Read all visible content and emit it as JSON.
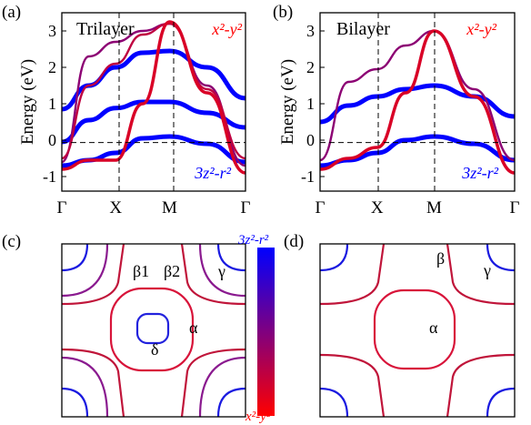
{
  "figure": {
    "colors": {
      "orbital_x2y2": "#ff0000",
      "orbital_3z2r2": "#0000ff",
      "axis": "#000000",
      "dash": "#000000"
    }
  },
  "chart_data": [
    {
      "panel": "(a)",
      "type": "line",
      "title": "Trilayer",
      "ylabel": "Energy (eV)",
      "ylim": [
        -1.4,
        3.5
      ],
      "yticks": [
        -1,
        0,
        1,
        2,
        3
      ],
      "xticks": [
        "Γ",
        "X",
        "M",
        "Γ"
      ],
      "x_positions": [
        0,
        1,
        2,
        3.41
      ],
      "hlines": [
        0
      ],
      "vlines": [
        1,
        2
      ],
      "annotations": {
        "top_right": "x²-y²",
        "bottom_right": "3z²-r²"
      },
      "series": [
        {
          "color_weight": 0.0,
          "x": [
            0,
            0.5,
            1,
            1.5,
            2,
            2.7,
            3.41
          ],
          "values": [
            0.85,
            1.5,
            2.0,
            2.4,
            2.45,
            2.0,
            1.15
          ]
        },
        {
          "color_weight": 0.0,
          "x": [
            0,
            0.5,
            1,
            1.5,
            2,
            2.7,
            3.41
          ],
          "values": [
            -0.05,
            0.55,
            0.88,
            1.05,
            1.05,
            0.75,
            0.35
          ]
        },
        {
          "color_weight": 0.0,
          "x": [
            0,
            0.5,
            1,
            1.5,
            2,
            2.7,
            3.41
          ],
          "values": [
            -0.7,
            -0.55,
            -0.35,
            0.05,
            0.1,
            -0.1,
            -0.6
          ]
        },
        {
          "color_weight": 0.55,
          "x": [
            0,
            0.5,
            1,
            1.5,
            2,
            2.7,
            3.41
          ],
          "values": [
            -0.6,
            2.3,
            2.7,
            3.0,
            3.2,
            1.5,
            -0.7
          ]
        },
        {
          "color_weight": 0.75,
          "x": [
            0,
            0.5,
            1,
            1.5,
            2,
            2.7,
            3.41
          ],
          "values": [
            -0.5,
            1.5,
            2.1,
            2.9,
            3.2,
            1.4,
            -0.5
          ]
        },
        {
          "color_weight": 0.85,
          "x": [
            0,
            0.5,
            1,
            1.5,
            2,
            2.7,
            3.41
          ],
          "values": [
            -0.8,
            -0.55,
            -0.55,
            1.0,
            3.25,
            1.3,
            -0.9
          ]
        }
      ]
    },
    {
      "panel": "(b)",
      "type": "line",
      "title": "Bilayer",
      "ylabel": "Energy (eV)",
      "ylim": [
        -1.4,
        3.5
      ],
      "yticks": [
        -1,
        0,
        1,
        2,
        3
      ],
      "xticks": [
        "Γ",
        "X",
        "M",
        "Γ"
      ],
      "x_positions": [
        0,
        1,
        2,
        3.41
      ],
      "hlines": [
        0
      ],
      "vlines": [
        1,
        2
      ],
      "annotations": {
        "top_right": "x²-y²",
        "bottom_right": "3z²-r²"
      },
      "series": [
        {
          "color_weight": 0.0,
          "x": [
            0,
            0.5,
            1,
            1.5,
            2,
            2.7,
            3.41
          ],
          "values": [
            0.5,
            0.95,
            1.2,
            1.4,
            1.5,
            1.2,
            0.65
          ]
        },
        {
          "color_weight": 0.0,
          "x": [
            0,
            0.5,
            1,
            1.5,
            2,
            2.7,
            3.41
          ],
          "values": [
            -0.7,
            -0.55,
            -0.35,
            0.0,
            0.1,
            -0.1,
            -0.55
          ]
        },
        {
          "color_weight": 0.55,
          "x": [
            0,
            0.5,
            1,
            1.5,
            2,
            2.7,
            3.41
          ],
          "values": [
            -0.55,
            1.6,
            1.95,
            2.6,
            3.0,
            1.4,
            -0.55
          ]
        },
        {
          "color_weight": 0.85,
          "x": [
            0,
            0.5,
            1,
            1.5,
            2,
            2.7,
            3.41
          ],
          "values": [
            -0.8,
            -0.5,
            -0.2,
            1.3,
            3.0,
            1.2,
            -0.9
          ]
        }
      ]
    },
    {
      "panel": "(c)",
      "type": "contour",
      "labels": [
        "β1",
        "β2",
        "γ",
        "α",
        "δ"
      ],
      "colorbar": {
        "top_label": "3z²-r²",
        "bottom_label": "x²-y²"
      }
    },
    {
      "panel": "(d)",
      "type": "contour",
      "labels": [
        "β",
        "γ",
        "α"
      ]
    }
  ]
}
